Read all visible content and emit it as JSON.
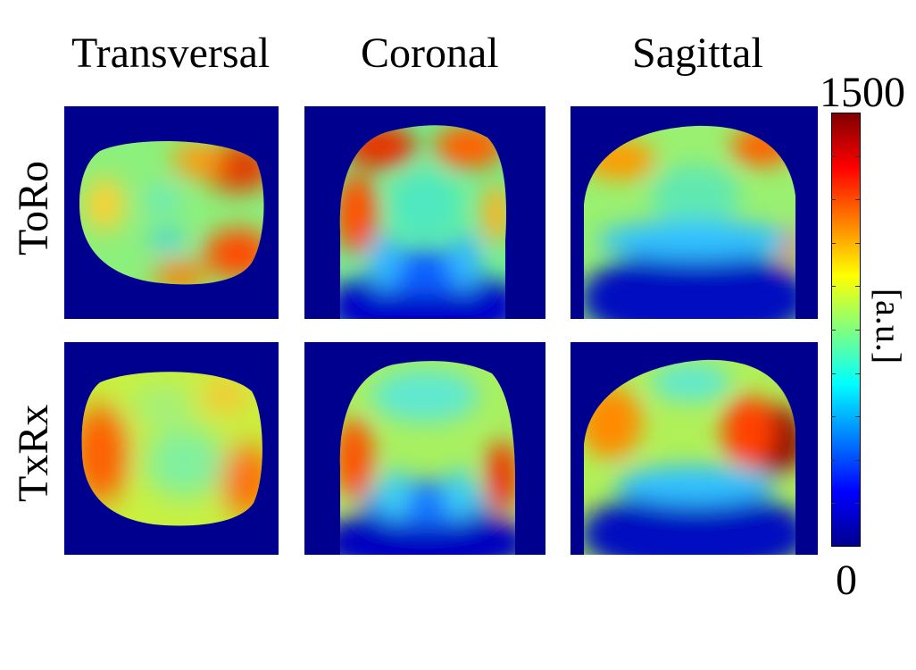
{
  "chart_data": {
    "type": "heatmap",
    "columns": [
      "Transversal",
      "Coronal",
      "Sagittal"
    ],
    "rows": [
      "ToRo",
      "TxRx"
    ],
    "colorbar": {
      "min_label": "0",
      "max_label": "1500",
      "unit": "[a.u.]",
      "range": [
        0,
        1500
      ],
      "colormap": "jet"
    },
    "panels": [
      {
        "row": "ToRo",
        "column": "Transversal",
        "approx_range": [
          700,
          1450
        ]
      },
      {
        "row": "ToRo",
        "column": "Coronal",
        "approx_range": [
          0,
          1450
        ]
      },
      {
        "row": "ToRo",
        "column": "Sagittal",
        "approx_range": [
          0,
          1400
        ]
      },
      {
        "row": "TxRx",
        "column": "Transversal",
        "approx_range": [
          800,
          1350
        ]
      },
      {
        "row": "TxRx",
        "column": "Coronal",
        "approx_range": [
          0,
          1400
        ]
      },
      {
        "row": "TxRx",
        "column": "Sagittal",
        "approx_range": [
          0,
          1500
        ]
      }
    ]
  },
  "colors": {
    "background_blue": "#00008f",
    "colormap": "jet"
  }
}
